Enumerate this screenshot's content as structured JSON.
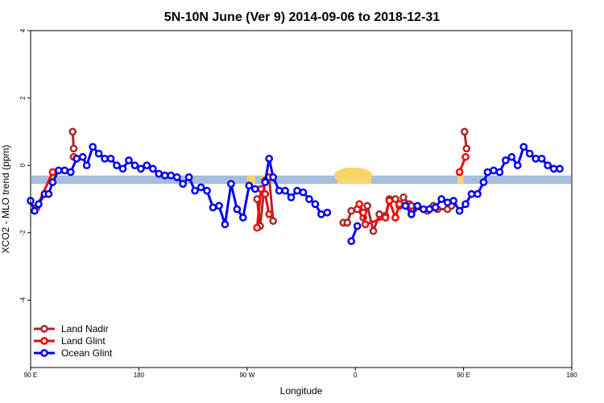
{
  "chart_data": {
    "type": "line",
    "title": "5N-10N June (Ver 9)   2014-09-06 to 2018-12-31",
    "xlabel": "Longitude",
    "ylabel": "XCO2 - MLO trend (ppm)",
    "xlim": [
      -90,
      180
    ],
    "ylim": [
      -6,
      4
    ],
    "x_ticks": [
      {
        "value": -90,
        "label": "90 E"
      },
      {
        "value": -36,
        "label": "180"
      },
      {
        "value": 18,
        "label": "90 W"
      },
      {
        "value": 72,
        "label": "0"
      },
      {
        "value": 126,
        "label": "90 E"
      },
      {
        "value": 180,
        "label": "180"
      }
    ],
    "y_ticks": [
      {
        "value": -4,
        "label": "-4"
      },
      {
        "value": -2,
        "label": "-2"
      },
      {
        "value": 0,
        "label": "0"
      },
      {
        "value": 2,
        "label": "2"
      },
      {
        "value": 4,
        "label": "4"
      }
    ],
    "grid": false,
    "legend_position": "bottom-left",
    "background_band": {
      "y_range": [
        -0.55,
        -0.3
      ],
      "color": "#a6bddb",
      "land_color": "#f7d56a"
    },
    "series": [
      {
        "name": "Land Nadir",
        "color": "#a52a2a",
        "segments": [
          [
            [
              -69,
              1.0
            ],
            [
              -68.5,
              0.5
            ]
          ],
          [
            [
              23,
              -1.0
            ],
            [
              24.5,
              -1.8
            ],
            [
              27,
              -0.45
            ],
            [
              29,
              -0.35
            ],
            [
              31,
              -1.65
            ]
          ],
          [
            [
              126.5,
              1.0
            ],
            [
              127.5,
              0.5
            ]
          ],
          [
            [
              66,
              -1.7
            ],
            [
              68,
              -1.7
            ],
            [
              70,
              -1.35
            ],
            [
              73,
              -1.3
            ],
            [
              76,
              -1.55
            ],
            [
              78,
              -1.2
            ],
            [
              81,
              -1.95
            ],
            [
              84,
              -1.45
            ],
            [
              87,
              -1.5
            ],
            [
              89,
              -1.0
            ],
            [
              92,
              -1.0
            ],
            [
              94,
              -1.2
            ],
            [
              96,
              -0.95
            ],
            [
              99,
              -1.15
            ],
            [
              101,
              -1.3
            ],
            [
              109,
              -1.3
            ],
            [
              111,
              -1.2
            ],
            [
              113,
              -1.3
            ],
            [
              118,
              -1.3
            ],
            [
              120,
              -1.2
            ]
          ]
        ]
      },
      {
        "name": "Land Glint",
        "color": "#ff0000",
        "segments": [
          [
            [
              -87,
              -1.25
            ],
            [
              -79,
              -0.2
            ]
          ],
          [
            [
              -68.5,
              0.25
            ]
          ],
          [
            [
              23,
              -1.85
            ],
            [
              25,
              -0.7
            ],
            [
              27,
              -0.85
            ],
            [
              29,
              -1.45
            ]
          ],
          [
            [
              74,
              -1.15
            ],
            [
              76,
              -1.4
            ],
            [
              77,
              -1.75
            ],
            [
              87,
              -1.55
            ],
            [
              89,
              -1.05
            ],
            [
              92,
              -1.55
            ],
            [
              94,
              -1.15
            ],
            [
              100,
              -1.2
            ],
            [
              108,
              -1.35
            ]
          ],
          [
            [
              124,
              -0.2
            ],
            [
              127,
              0.25
            ]
          ]
        ]
      },
      {
        "name": "Ocean Glint",
        "color": "#0000ee",
        "segments": [
          [
            [
              -90,
              -1.05
            ],
            [
              -88,
              -1.35
            ],
            [
              -86,
              -1.15
            ],
            [
              -83,
              -0.85
            ],
            [
              -81,
              -0.85
            ],
            [
              -79,
              -0.5
            ],
            [
              -76,
              -0.15
            ],
            [
              -73,
              -0.15
            ],
            [
              -70,
              -0.2
            ],
            [
              -67,
              0.2
            ],
            [
              -64,
              0.25
            ],
            [
              -62,
              0.0
            ],
            [
              -59,
              0.55
            ],
            [
              -56,
              0.35
            ],
            [
              -53,
              0.2
            ],
            [
              -50,
              0.2
            ],
            [
              -47,
              0.0
            ],
            [
              -44,
              -0.1
            ],
            [
              -41,
              0.15
            ],
            [
              -38,
              0.0
            ],
            [
              -35,
              -0.1
            ],
            [
              -32,
              0.0
            ],
            [
              -29,
              -0.1
            ],
            [
              -26,
              -0.25
            ],
            [
              -23,
              -0.3
            ],
            [
              -20,
              -0.3
            ],
            [
              -17,
              -0.35
            ],
            [
              -14,
              -0.55
            ],
            [
              -11,
              -0.35
            ],
            [
              -8,
              -0.75
            ],
            [
              -5,
              -0.65
            ],
            [
              -2,
              -0.75
            ],
            [
              1,
              -1.25
            ],
            [
              4,
              -1.2
            ],
            [
              7,
              -1.75
            ],
            [
              10,
              -0.55
            ],
            [
              13,
              -1.3
            ],
            [
              16,
              -1.55
            ],
            [
              19,
              -0.6
            ],
            [
              22,
              -0.7
            ]
          ],
          [
            [
              27,
              -0.5
            ],
            [
              29,
              0.2
            ],
            [
              31,
              -0.35
            ],
            [
              34,
              -0.75
            ],
            [
              37,
              -0.75
            ],
            [
              40,
              -0.95
            ],
            [
              43,
              -0.75
            ],
            [
              46,
              -0.8
            ],
            [
              49,
              -1.0
            ],
            [
              52,
              -1.15
            ],
            [
              55,
              -1.45
            ],
            [
              58,
              -1.4
            ]
          ],
          [
            [
              70,
              -2.25
            ],
            [
              73,
              -1.8
            ]
          ],
          [
            [
              97,
              -1.2
            ],
            [
              100,
              -1.45
            ],
            [
              103,
              -1.2
            ],
            [
              106,
              -1.3
            ],
            [
              109,
              -1.3
            ],
            [
              112,
              -1.25
            ],
            [
              115,
              -1.0
            ],
            [
              118,
              -1.1
            ],
            [
              121,
              -1.05
            ],
            [
              124,
              -1.35
            ],
            [
              127,
              -1.15
            ],
            [
              130,
              -0.85
            ],
            [
              133,
              -0.85
            ],
            [
              136,
              -0.5
            ],
            [
              138,
              -0.2
            ],
            [
              141,
              -0.15
            ],
            [
              144,
              -0.2
            ],
            [
              147,
              0.15
            ],
            [
              150,
              0.25
            ],
            [
              153,
              0.0
            ],
            [
              156,
              0.55
            ],
            [
              159,
              0.35
            ],
            [
              162,
              0.2
            ],
            [
              165,
              0.2
            ],
            [
              168,
              0.0
            ],
            [
              171,
              -0.1
            ],
            [
              174,
              -0.1
            ]
          ]
        ]
      }
    ]
  }
}
